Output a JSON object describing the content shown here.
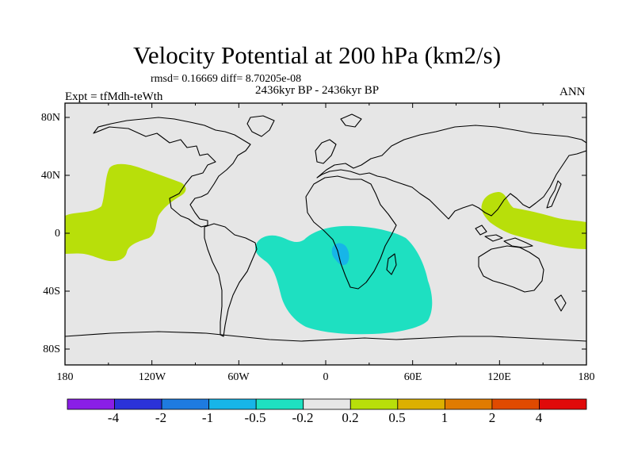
{
  "title": "Velocity Potential at 200 hPa (km2/s)",
  "stats_text": "rmsd= 0.16669  diff= 8.70205e-08",
  "period_text": "2436kyr BP - 2436kyr BP",
  "experiment_text": "Expt = tfMdh-teWth",
  "season_text": "ANN",
  "map": {
    "projection": "cylindrical-equidistant",
    "background_color": "#e6e6e6",
    "lat_ticks": [
      "80N",
      "40N",
      "0",
      "40S",
      "80S"
    ],
    "lon_ticks": [
      "180",
      "120W",
      "60W",
      "0",
      "60E",
      "120E",
      "180"
    ]
  },
  "colorbar": {
    "labels": [
      "-4",
      "-2",
      "-1",
      "-0.5",
      "-0.2",
      "0.2",
      "0.5",
      "1",
      "2",
      "4"
    ],
    "colors": [
      "#8a1ee6",
      "#2b32d9",
      "#1e7be0",
      "#17b5e8",
      "#1ee0c1",
      "#e6e6e6",
      "#b8df0a",
      "#dcb000",
      "#e07b00",
      "#e04a00",
      "#e00a0a"
    ]
  },
  "anomaly_regions": [
    {
      "name": "east-pacific-positive",
      "level": "0.2 to 0.5",
      "color": "#b8df0a"
    },
    {
      "name": "south-atlantic-africa-negative",
      "level": "-0.5 to -0.2",
      "color": "#1ee0c1"
    },
    {
      "name": "central-africa-core",
      "level": "-1 to -0.5",
      "color": "#17b5e8"
    },
    {
      "name": "west-pacific-positive",
      "level": "0.2 to 0.5",
      "color": "#b8df0a"
    }
  ]
}
